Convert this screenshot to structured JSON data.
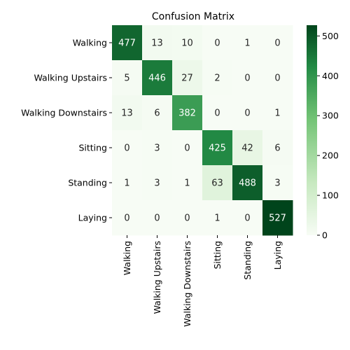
{
  "chart_data": {
    "type": "heatmap",
    "title": "Confusion Matrix",
    "row_labels": [
      "Walking",
      "Walking Upstairs",
      "Walking Downstairs",
      "Sitting",
      "Standing",
      "Laying"
    ],
    "col_labels": [
      "Walking",
      "Walking Upstairs",
      "Walking Downstairs",
      "Sitting",
      "Standing",
      "Laying"
    ],
    "values": [
      [
        477,
        13,
        10,
        0,
        1,
        0
      ],
      [
        5,
        446,
        27,
        2,
        0,
        0
      ],
      [
        13,
        6,
        382,
        0,
        0,
        1
      ],
      [
        0,
        3,
        0,
        425,
        42,
        6
      ],
      [
        1,
        3,
        1,
        63,
        488,
        3
      ],
      [
        0,
        0,
        0,
        1,
        0,
        527
      ]
    ],
    "colormap": "Greens",
    "vmin": 0,
    "vmax": 527,
    "colorbar_ticks": [
      0,
      100,
      200,
      300,
      400,
      500
    ],
    "colors": {
      "low": "#f7fcf5",
      "mid1": "#c7e9c0",
      "mid2": "#74c476",
      "mid3": "#238b45",
      "high": "#00441b"
    }
  }
}
